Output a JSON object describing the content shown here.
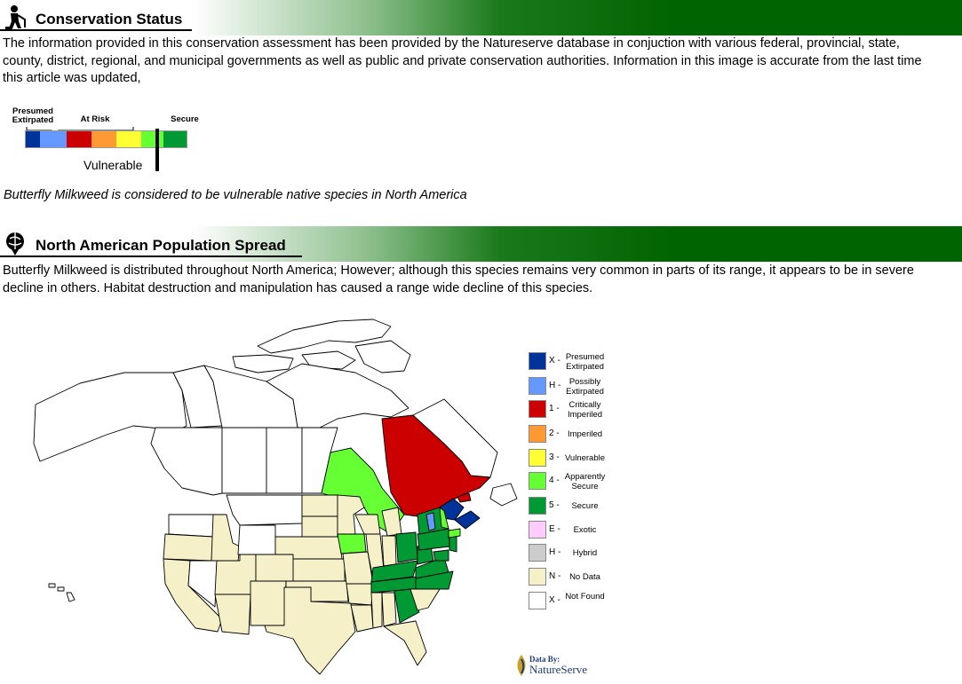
{
  "conservation": {
    "heading": "Conservation Status",
    "text": "The information provided in this conservation assessment has been provided by the Natureserve database in conjuction with various federal, provincial, state, county, district, regional, and municipal governments as well as public and private conservation authorities. Information in this image is accurate from the last time this article was updated,",
    "scale": {
      "label_left": "Presumed Extirpated",
      "label_mid": "At Risk",
      "label_right": "Secure",
      "marker_label": "Vulnerable",
      "colors": [
        "#003399",
        "#6699ff",
        "#cc0000",
        "#ff9933",
        "#ffff33",
        "#66ff33",
        "#009933"
      ]
    },
    "statement": "Butterfly Milkweed is considered to be vulnerable native species in North America"
  },
  "population": {
    "heading": "North American Population Spread",
    "text": "Butterfly Milkweed is distributed throughout North America; However; although this species remains very common in parts of its range, it appears to be in severe decline in others. Habitat destruction and manipulation has caused a range wide decline of this species."
  },
  "legend": [
    {
      "code": "X -",
      "label": "Presumed Extirpated",
      "color": "#003399"
    },
    {
      "code": "H -",
      "label": "Possibly Extirpated",
      "color": "#6699ff"
    },
    {
      "code": "1 -",
      "label": "Critically Imperiled",
      "color": "#cc0000"
    },
    {
      "code": "2 -",
      "label": "Imperiled",
      "color": "#ff9933"
    },
    {
      "code": "3 -",
      "label": "Vulnerable",
      "color": "#ffff33"
    },
    {
      "code": "4 -",
      "label": "Apparently Secure",
      "color": "#66ff33"
    },
    {
      "code": "5 -",
      "label": "Secure",
      "color": "#009933"
    },
    {
      "code": "E -",
      "label": "Exotic",
      "color": "#ffccff"
    },
    {
      "code": "H -",
      "label": "Hybrid",
      "color": "#cccccc"
    },
    {
      "code": "N -",
      "label": "No Data",
      "color": "#f5f0c8"
    },
    {
      "code": "X -",
      "label": "Not Found",
      "color": "#ffffff"
    }
  ],
  "credit": {
    "prefix": "Data By:",
    "name": "NatureServe"
  }
}
